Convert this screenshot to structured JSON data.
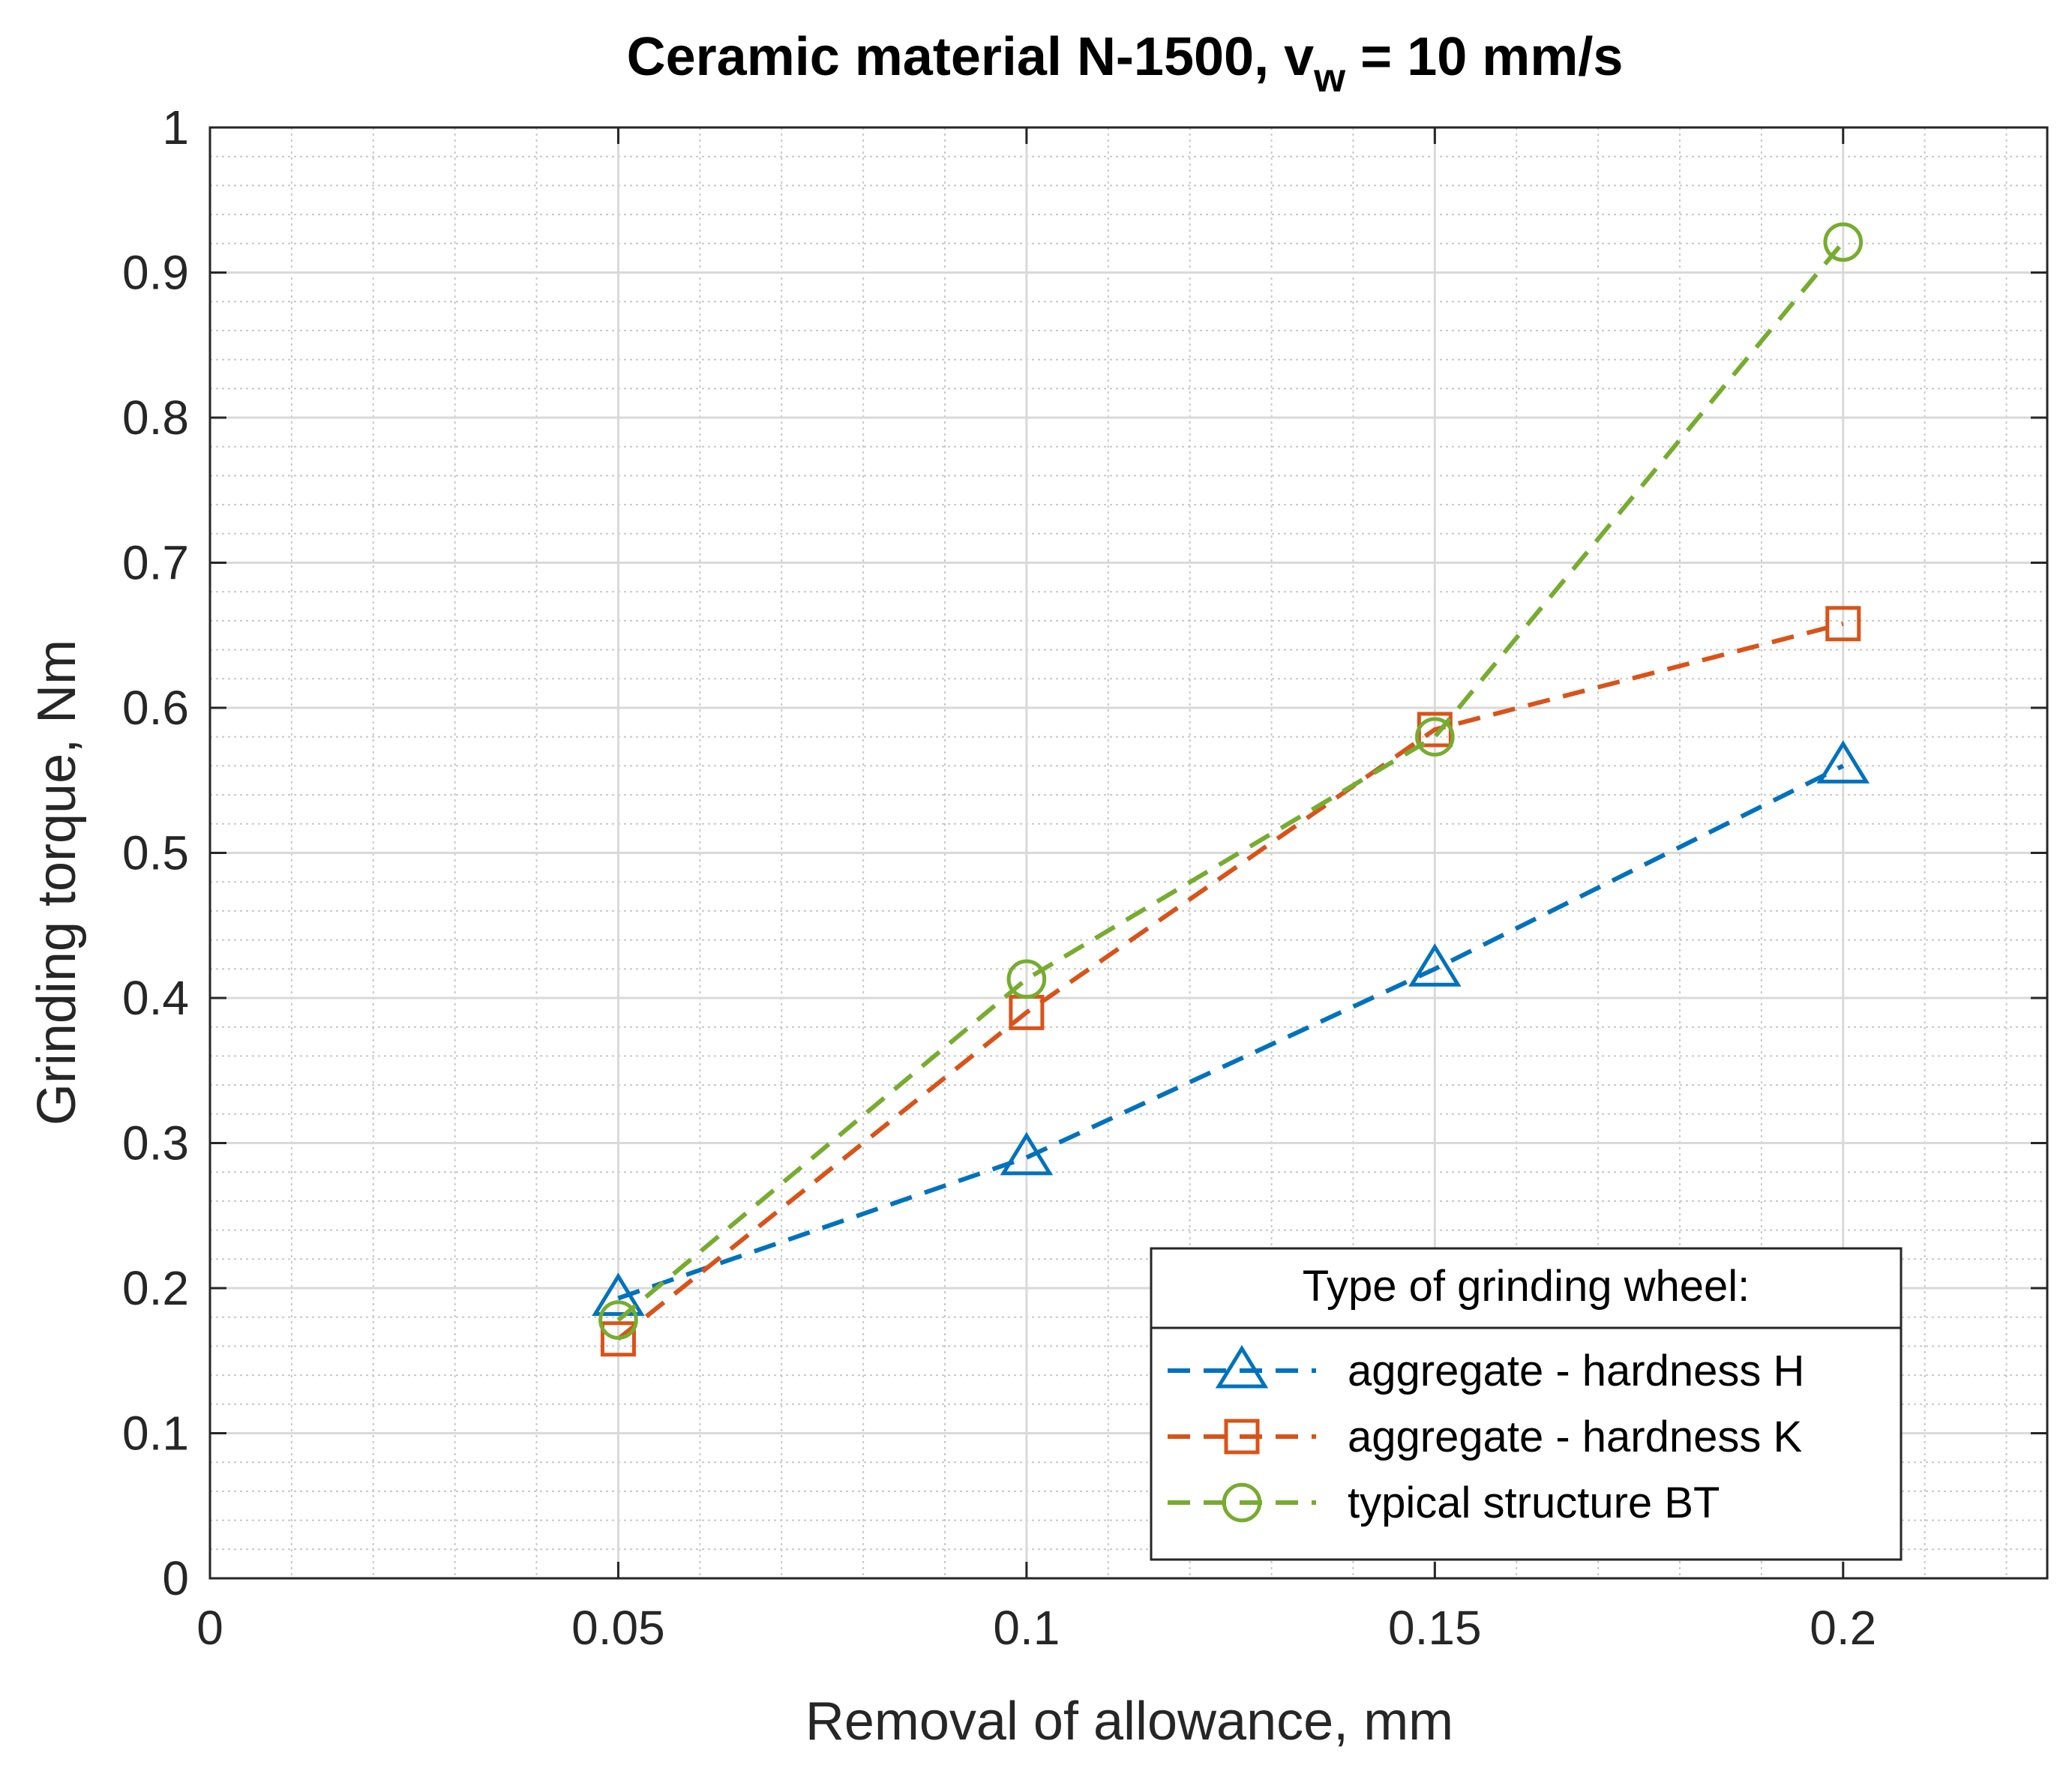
{
  "chart_data": {
    "type": "line",
    "title_main": "Ceramic material N-1500, v",
    "title_sub": "w",
    "title_tail": " = 10 mm/s",
    "xlabel": "Removal of allowance, mm",
    "ylabel": "Grinding torque, Nm",
    "xlim": [
      0,
      0.225
    ],
    "ylim": [
      0,
      1
    ],
    "xticks": [
      0,
      0.05,
      0.1,
      0.15,
      0.2
    ],
    "xtick_labels": [
      "0",
      "0.05",
      "0.1",
      "0.15",
      "0.2"
    ],
    "yticks": [
      0,
      0.1,
      0.2,
      0.3,
      0.4,
      0.5,
      0.6,
      0.7,
      0.8,
      0.9,
      1
    ],
    "ytick_labels": [
      "0",
      "0.1",
      "0.2",
      "0.3",
      "0.4",
      "0.5",
      "0.6",
      "0.7",
      "0.8",
      "0.9",
      "1"
    ],
    "grid": true,
    "minor_grid": true,
    "line_style": "dashed",
    "legend": {
      "title": "Type of grinding wheel:",
      "placement": "bottom-right"
    },
    "x": [
      0.05,
      0.1,
      0.15,
      0.2
    ],
    "series": [
      {
        "name": "aggregate - hardness H",
        "values": [
          0.193,
          0.29,
          0.42,
          0.56
        ],
        "color": "#0072BD",
        "marker": "triangle"
      },
      {
        "name": "aggregate - hardness K",
        "values": [
          0.165,
          0.39,
          0.585,
          0.658
        ],
        "color": "#D95319",
        "marker": "square"
      },
      {
        "name": "typical structure BT",
        "values": [
          0.178,
          0.413,
          0.58,
          0.921
        ],
        "color": "#77AC30",
        "marker": "circle"
      }
    ]
  }
}
